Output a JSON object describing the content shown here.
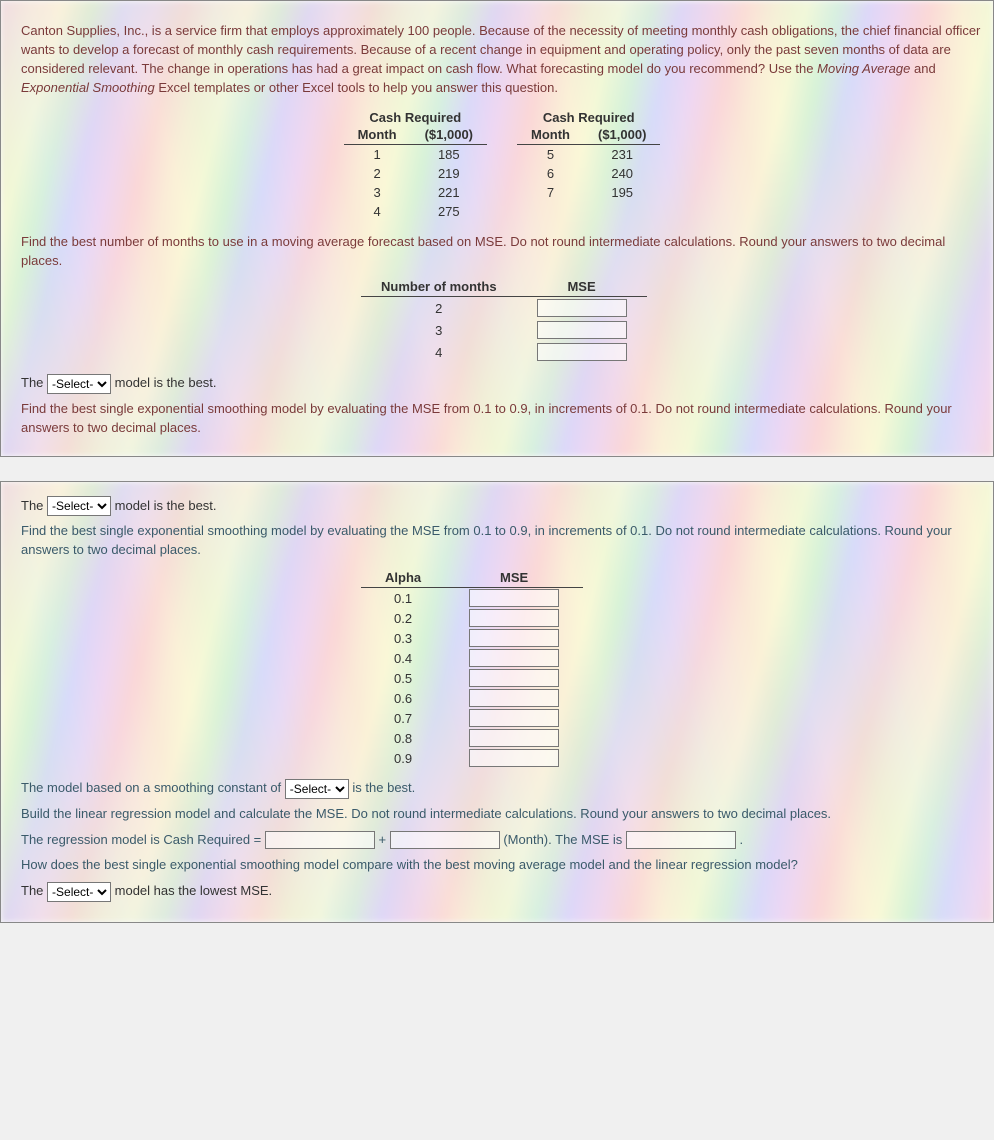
{
  "panel1": {
    "intro_html": "Canton Supplies, Inc., is a service firm that employs approximately 100 people. Because of the necessity of meeting monthly cash obligations, the chief financial officer wants to develop a forecast of monthly cash requirements. Because of a recent change in equipment and operating policy, only the past seven months of data are considered relevant. The change in operations has had a great impact on cash flow. What forecasting model do you recommend? Use the ",
    "intro_em1": "Moving Average",
    "intro_mid": " and ",
    "intro_em2": "Exponential Smoothing",
    "intro_tail": " Excel templates or other Excel tools to help you answer this question.",
    "cash_header": "Cash Required",
    "col_month": "Month",
    "col_cash": "($1,000)",
    "cash_left": {
      "months": [
        "1",
        "2",
        "3",
        "4"
      ],
      "values": [
        "185",
        "219",
        "221",
        "275"
      ]
    },
    "cash_right": {
      "months": [
        "5",
        "6",
        "7"
      ],
      "values": [
        "231",
        "240",
        "195"
      ]
    },
    "q_ma": "Find the best number of months to use in a moving average forecast based on MSE. Do not round intermediate calculations. Round your answers to two decimal places.",
    "ma_col1": "Number of months",
    "ma_col2": "MSE",
    "ma_rows": [
      "2",
      "3",
      "4"
    ],
    "best_prefix": "The ",
    "best_suffix": " model is the best.",
    "select_placeholder": "-Select-",
    "q_es": "Find the best single exponential smoothing model by evaluating the MSE from 0.1 to 0.9, in increments of 0.1. Do not round intermediate calculations. Round your answers to two decimal places."
  },
  "panel2": {
    "best_prefix": "The ",
    "best_suffix": " model is the best.",
    "select_placeholder": "-Select-",
    "q_es": "Find the best single exponential smoothing model by evaluating the MSE from 0.1 to 0.9, in increments of 0.1. Do not round intermediate calculations. Round your answers to two decimal places.",
    "alpha_col1": "Alpha",
    "alpha_col2": "MSE",
    "alpha_rows": [
      "0.1",
      "0.2",
      "0.3",
      "0.4",
      "0.5",
      "0.6",
      "0.7",
      "0.8",
      "0.9"
    ],
    "sc_prefix": "The model based on a smoothing constant of ",
    "sc_suffix": " is the best.",
    "lr_instr": "Build the linear regression model and calculate the MSE. Do not round intermediate calculations. Round your answers to two decimal places.",
    "lr_eq_prefix": "The regression model is Cash Required = ",
    "lr_eq_plus": " + ",
    "lr_eq_mid": " (Month). The MSE is ",
    "lr_eq_end": " .",
    "compare_q": "How does the best single exponential smoothing model compare with the best moving average model and the linear regression model?",
    "final_prefix": "The ",
    "final_suffix": " model has the lowest MSE."
  }
}
